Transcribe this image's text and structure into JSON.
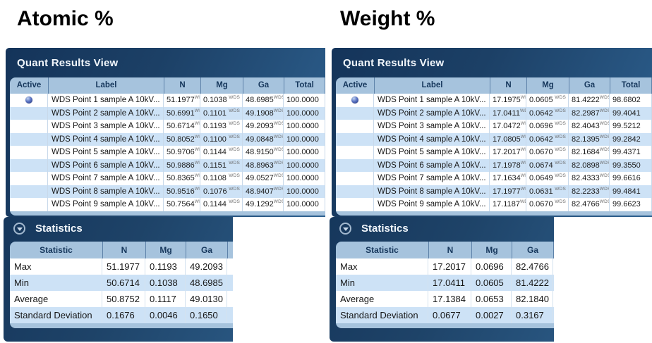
{
  "unit": "WDS",
  "colors": {
    "panel_navy_dark": "#14345a",
    "panel_navy_light": "#2e6190",
    "table_header_blue": "#a6c3dd",
    "row_alt_blue": "#cde2f6",
    "header_text_navy": "#16375c",
    "active_radio_blue": "#2e4aa8"
  },
  "sections": [
    {
      "title": "Atomic %",
      "panel_title": "Quant Results View",
      "table": {
        "columns": [
          "Active",
          "Label",
          "N",
          "Mg",
          "Ga",
          "Total"
        ],
        "rows": [
          {
            "active": true,
            "label": "WDS Point 1 sample A 10kV...",
            "n": "51.1977",
            "mg": "0.1038",
            "ga": "48.6985",
            "total": "100.0000"
          },
          {
            "active": false,
            "label": "WDS Point 2 sample A 10kV...",
            "n": "50.6991",
            "mg": "0.1101",
            "ga": "49.1908",
            "total": "100.0000"
          },
          {
            "active": false,
            "label": "WDS Point 3 sample A 10kV...",
            "n": "50.6714",
            "mg": "0.1193",
            "ga": "49.2093",
            "total": "100.0000"
          },
          {
            "active": false,
            "label": "WDS Point 4 sample A 10kV...",
            "n": "50.8052",
            "mg": "0.1100",
            "ga": "49.0848",
            "total": "100.0000"
          },
          {
            "active": false,
            "label": "WDS Point 5 sample A 10kV...",
            "n": "50.9706",
            "mg": "0.1144",
            "ga": "48.9150",
            "total": "100.0000"
          },
          {
            "active": false,
            "label": "WDS Point 6 sample A 10kV...",
            "n": "50.9886",
            "mg": "0.1151",
            "ga": "48.8963",
            "total": "100.0000"
          },
          {
            "active": false,
            "label": "WDS Point 7 sample A 10kV...",
            "n": "50.8365",
            "mg": "0.1108",
            "ga": "49.0527",
            "total": "100.0000"
          },
          {
            "active": false,
            "label": "WDS Point 8 sample A 10kV...",
            "n": "50.9516",
            "mg": "0.1076",
            "ga": "48.9407",
            "total": "100.0000"
          },
          {
            "active": false,
            "label": "WDS Point 9 sample A 10kV...",
            "n": "50.7564",
            "mg": "0.1144",
            "ga": "49.1292",
            "total": "100.0000"
          }
        ]
      },
      "statistics": {
        "title": "Statistics",
        "columns": [
          "Statistic",
          "N",
          "Mg",
          "Ga"
        ],
        "rows": [
          {
            "label": "Max",
            "n": "51.1977",
            "mg": "0.1193",
            "ga": "49.2093"
          },
          {
            "label": "Min",
            "n": "50.6714",
            "mg": "0.1038",
            "ga": "48.6985"
          },
          {
            "label": "Average",
            "n": "50.8752",
            "mg": "0.1117",
            "ga": "49.0130"
          },
          {
            "label": "Standard Deviation",
            "n": "0.1676",
            "mg": "0.0046",
            "ga": "0.1650"
          }
        ]
      }
    },
    {
      "title": "Weight %",
      "panel_title": "Quant Results View",
      "table": {
        "columns": [
          "Active",
          "Label",
          "N",
          "Mg",
          "Ga",
          "Total"
        ],
        "rows": [
          {
            "active": true,
            "label": "WDS Point 1 sample A 10kV...",
            "n": "17.1975",
            "mg": "0.0605",
            "ga": "81.4222",
            "total": "98.6802"
          },
          {
            "active": false,
            "label": "WDS Point 2 sample A 10kV...",
            "n": "17.0411",
            "mg": "0.0642",
            "ga": "82.2987",
            "total": "99.4041"
          },
          {
            "active": false,
            "label": "WDS Point 3 sample A 10kV...",
            "n": "17.0472",
            "mg": "0.0696",
            "ga": "82.4043",
            "total": "99.5212"
          },
          {
            "active": false,
            "label": "WDS Point 4 sample A 10kV...",
            "n": "17.0805",
            "mg": "0.0642",
            "ga": "82.1395",
            "total": "99.2842"
          },
          {
            "active": false,
            "label": "WDS Point 5 sample A 10kV...",
            "n": "17.2017",
            "mg": "0.0670",
            "ga": "82.1684",
            "total": "99.4371"
          },
          {
            "active": false,
            "label": "WDS Point 6 sample A 10kV...",
            "n": "17.1978",
            "mg": "0.0674",
            "ga": "82.0898",
            "total": "99.3550"
          },
          {
            "active": false,
            "label": "WDS Point 7 sample A 10kV...",
            "n": "17.1634",
            "mg": "0.0649",
            "ga": "82.4333",
            "total": "99.6616"
          },
          {
            "active": false,
            "label": "WDS Point 8 sample A 10kV...",
            "n": "17.1977",
            "mg": "0.0631",
            "ga": "82.2233",
            "total": "99.4841"
          },
          {
            "active": false,
            "label": "WDS Point 9 sample A 10kV...",
            "n": "17.1187",
            "mg": "0.0670",
            "ga": "82.4766",
            "total": "99.6623"
          }
        ]
      },
      "statistics": {
        "title": "Statistics",
        "columns": [
          "Statistic",
          "N",
          "Mg",
          "Ga"
        ],
        "rows": [
          {
            "label": "Max",
            "n": "17.2017",
            "mg": "0.0696",
            "ga": "82.4766"
          },
          {
            "label": "Min",
            "n": "17.0411",
            "mg": "0.0605",
            "ga": "81.4222"
          },
          {
            "label": "Average",
            "n": "17.1384",
            "mg": "0.0653",
            "ga": "82.1840"
          },
          {
            "label": "Standard Deviation",
            "n": "0.0677",
            "mg": "0.0027",
            "ga": "0.3167"
          }
        ]
      }
    }
  ]
}
